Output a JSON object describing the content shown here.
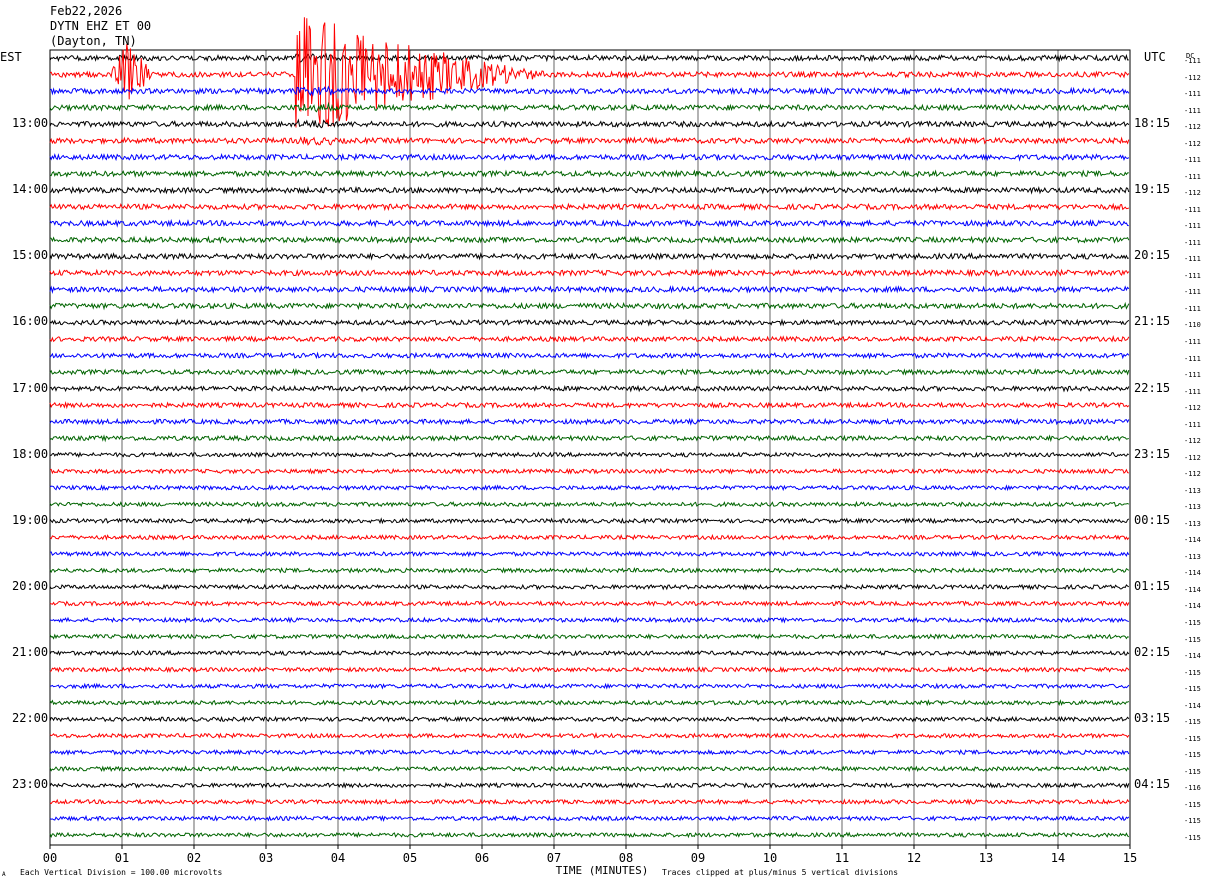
{
  "header": {
    "date": "Feb22,2026",
    "station": "DYTN EHZ ET 00",
    "location": "(Dayton, TN)"
  },
  "left_tz_label": "EST",
  "right_tz_label": "UTC",
  "dc_label": "DC",
  "footer": {
    "scale_note": "Each Vertical Division =  100.00 microvolts",
    "clip_note": "Traces clipped at plus/minus 5 vertical divisions",
    "corner_mark": "A"
  },
  "colors": {
    "trace_cycle": [
      "#000000",
      "#ff0000",
      "#0000ff",
      "#006400"
    ],
    "grid": "#000000",
    "background": "#ffffff"
  },
  "chart_data": {
    "type": "line",
    "subtype": "helicorder",
    "xlabel": "TIME (MINUTES)",
    "xlim": [
      0,
      15
    ],
    "x_ticks": [
      "00",
      "01",
      "02",
      "03",
      "04",
      "05",
      "06",
      "07",
      "08",
      "09",
      "10",
      "11",
      "12",
      "13",
      "14",
      "15"
    ],
    "left_hour_labels": [
      "13:00",
      "14:00",
      "15:00",
      "16:00",
      "17:00",
      "18:00",
      "19:00",
      "20:00",
      "21:00",
      "22:00",
      "23:00"
    ],
    "right_hour_labels": [
      "18:15",
      "19:15",
      "20:15",
      "21:15",
      "22:15",
      "23:15",
      "00:15",
      "01:15",
      "02:15",
      "03:15",
      "04:15"
    ],
    "lines_per_hour": 4,
    "minutes_per_line": 15,
    "total_lines": 48,
    "first_line_start_est": "12:00",
    "dc_offsets": [
      -111,
      -112,
      -111,
      -111,
      -112,
      -112,
      -111,
      -111,
      -112,
      -111,
      -111,
      -111,
      -111,
      -111,
      -111,
      -111,
      -110,
      -111,
      -111,
      -111,
      -111,
      -112,
      -111,
      -112,
      -112,
      -112,
      -113,
      -113,
      -113,
      -114,
      -113,
      -114,
      -114,
      -114,
      -115,
      -115,
      -114,
      -115,
      -115,
      -114,
      -115,
      -115,
      -115,
      -115,
      -116,
      -115,
      -115,
      -115
    ],
    "events": [
      {
        "line": 1,
        "start_min": 0.85,
        "end_min": 1.4,
        "peak_divisions": 2.5,
        "color": "red"
      },
      {
        "line": 1,
        "start_min": 3.4,
        "end_min": 7.0,
        "peak_divisions": 5,
        "clipped": true,
        "color": "red"
      }
    ],
    "scale_microvolts_per_division": 100.0,
    "clip_divisions": 5
  }
}
